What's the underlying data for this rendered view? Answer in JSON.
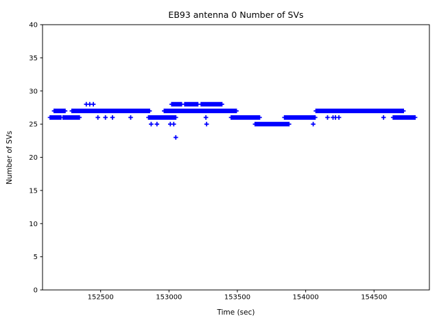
{
  "figure": {
    "title": "EB93 antenna 0 Number of SVs",
    "xlabel": "Time (sec)",
    "ylabel": "Number of SVs"
  },
  "chart_data": {
    "type": "scatter",
    "marker": "plus",
    "marker_color": "#0000ff",
    "title": "EB93 antenna 0 Number of SVs",
    "xlabel": "Time (sec)",
    "ylabel": "Number of SVs",
    "xlim": [
      152075,
      154905
    ],
    "ylim": [
      0,
      40
    ],
    "xticks": [
      152500,
      153000,
      153500,
      154000,
      154500
    ],
    "yticks": [
      0,
      5,
      10,
      15,
      20,
      25,
      30,
      35,
      40
    ],
    "grid": false,
    "legend": null,
    "sample_step_sec": 8,
    "series_name": "Number of SVs vs Time",
    "segments": [
      {
        "value": 26,
        "t_start": 152130,
        "t_end": 152210
      },
      {
        "value": 27,
        "t_start": 152160,
        "t_end": 152240
      },
      {
        "value": 26,
        "t_start": 152225,
        "t_end": 152345
      },
      {
        "value": 27,
        "t_start": 152290,
        "t_end": 152865
      },
      {
        "value": 26,
        "t_start": 152850,
        "t_end": 153050
      },
      {
        "value": 27,
        "t_start": 152965,
        "t_end": 153495
      },
      {
        "value": 28,
        "t_start": 153020,
        "t_end": 153095
      },
      {
        "value": 28,
        "t_start": 153115,
        "t_end": 153215
      },
      {
        "value": 28,
        "t_start": 153235,
        "t_end": 153390
      },
      {
        "value": 26,
        "t_start": 153455,
        "t_end": 153665
      },
      {
        "value": 25,
        "t_start": 153630,
        "t_end": 153885
      },
      {
        "value": 26,
        "t_start": 153845,
        "t_end": 154070
      },
      {
        "value": 27,
        "t_start": 154075,
        "t_end": 154715
      },
      {
        "value": 26,
        "t_start": 154640,
        "t_end": 154800
      }
    ],
    "single_points": [
      {
        "value": 28,
        "t": 152395
      },
      {
        "value": 28,
        "t": 152420
      },
      {
        "value": 28,
        "t": 152447
      },
      {
        "value": 26,
        "t": 152480
      },
      {
        "value": 26,
        "t": 152535
      },
      {
        "value": 26,
        "t": 152587
      },
      {
        "value": 26,
        "t": 152720
      },
      {
        "value": 25,
        "t": 152870
      },
      {
        "value": 25,
        "t": 152912
      },
      {
        "value": 25,
        "t": 153010
      },
      {
        "value": 25,
        "t": 153035
      },
      {
        "value": 23,
        "t": 153050
      },
      {
        "value": 26,
        "t": 153270
      },
      {
        "value": 25,
        "t": 153275
      },
      {
        "value": 25,
        "t": 154055
      },
      {
        "value": 26,
        "t": 154160
      },
      {
        "value": 26,
        "t": 154200
      },
      {
        "value": 26,
        "t": 154218
      },
      {
        "value": 26,
        "t": 154243
      },
      {
        "value": 26,
        "t": 154570
      }
    ]
  }
}
